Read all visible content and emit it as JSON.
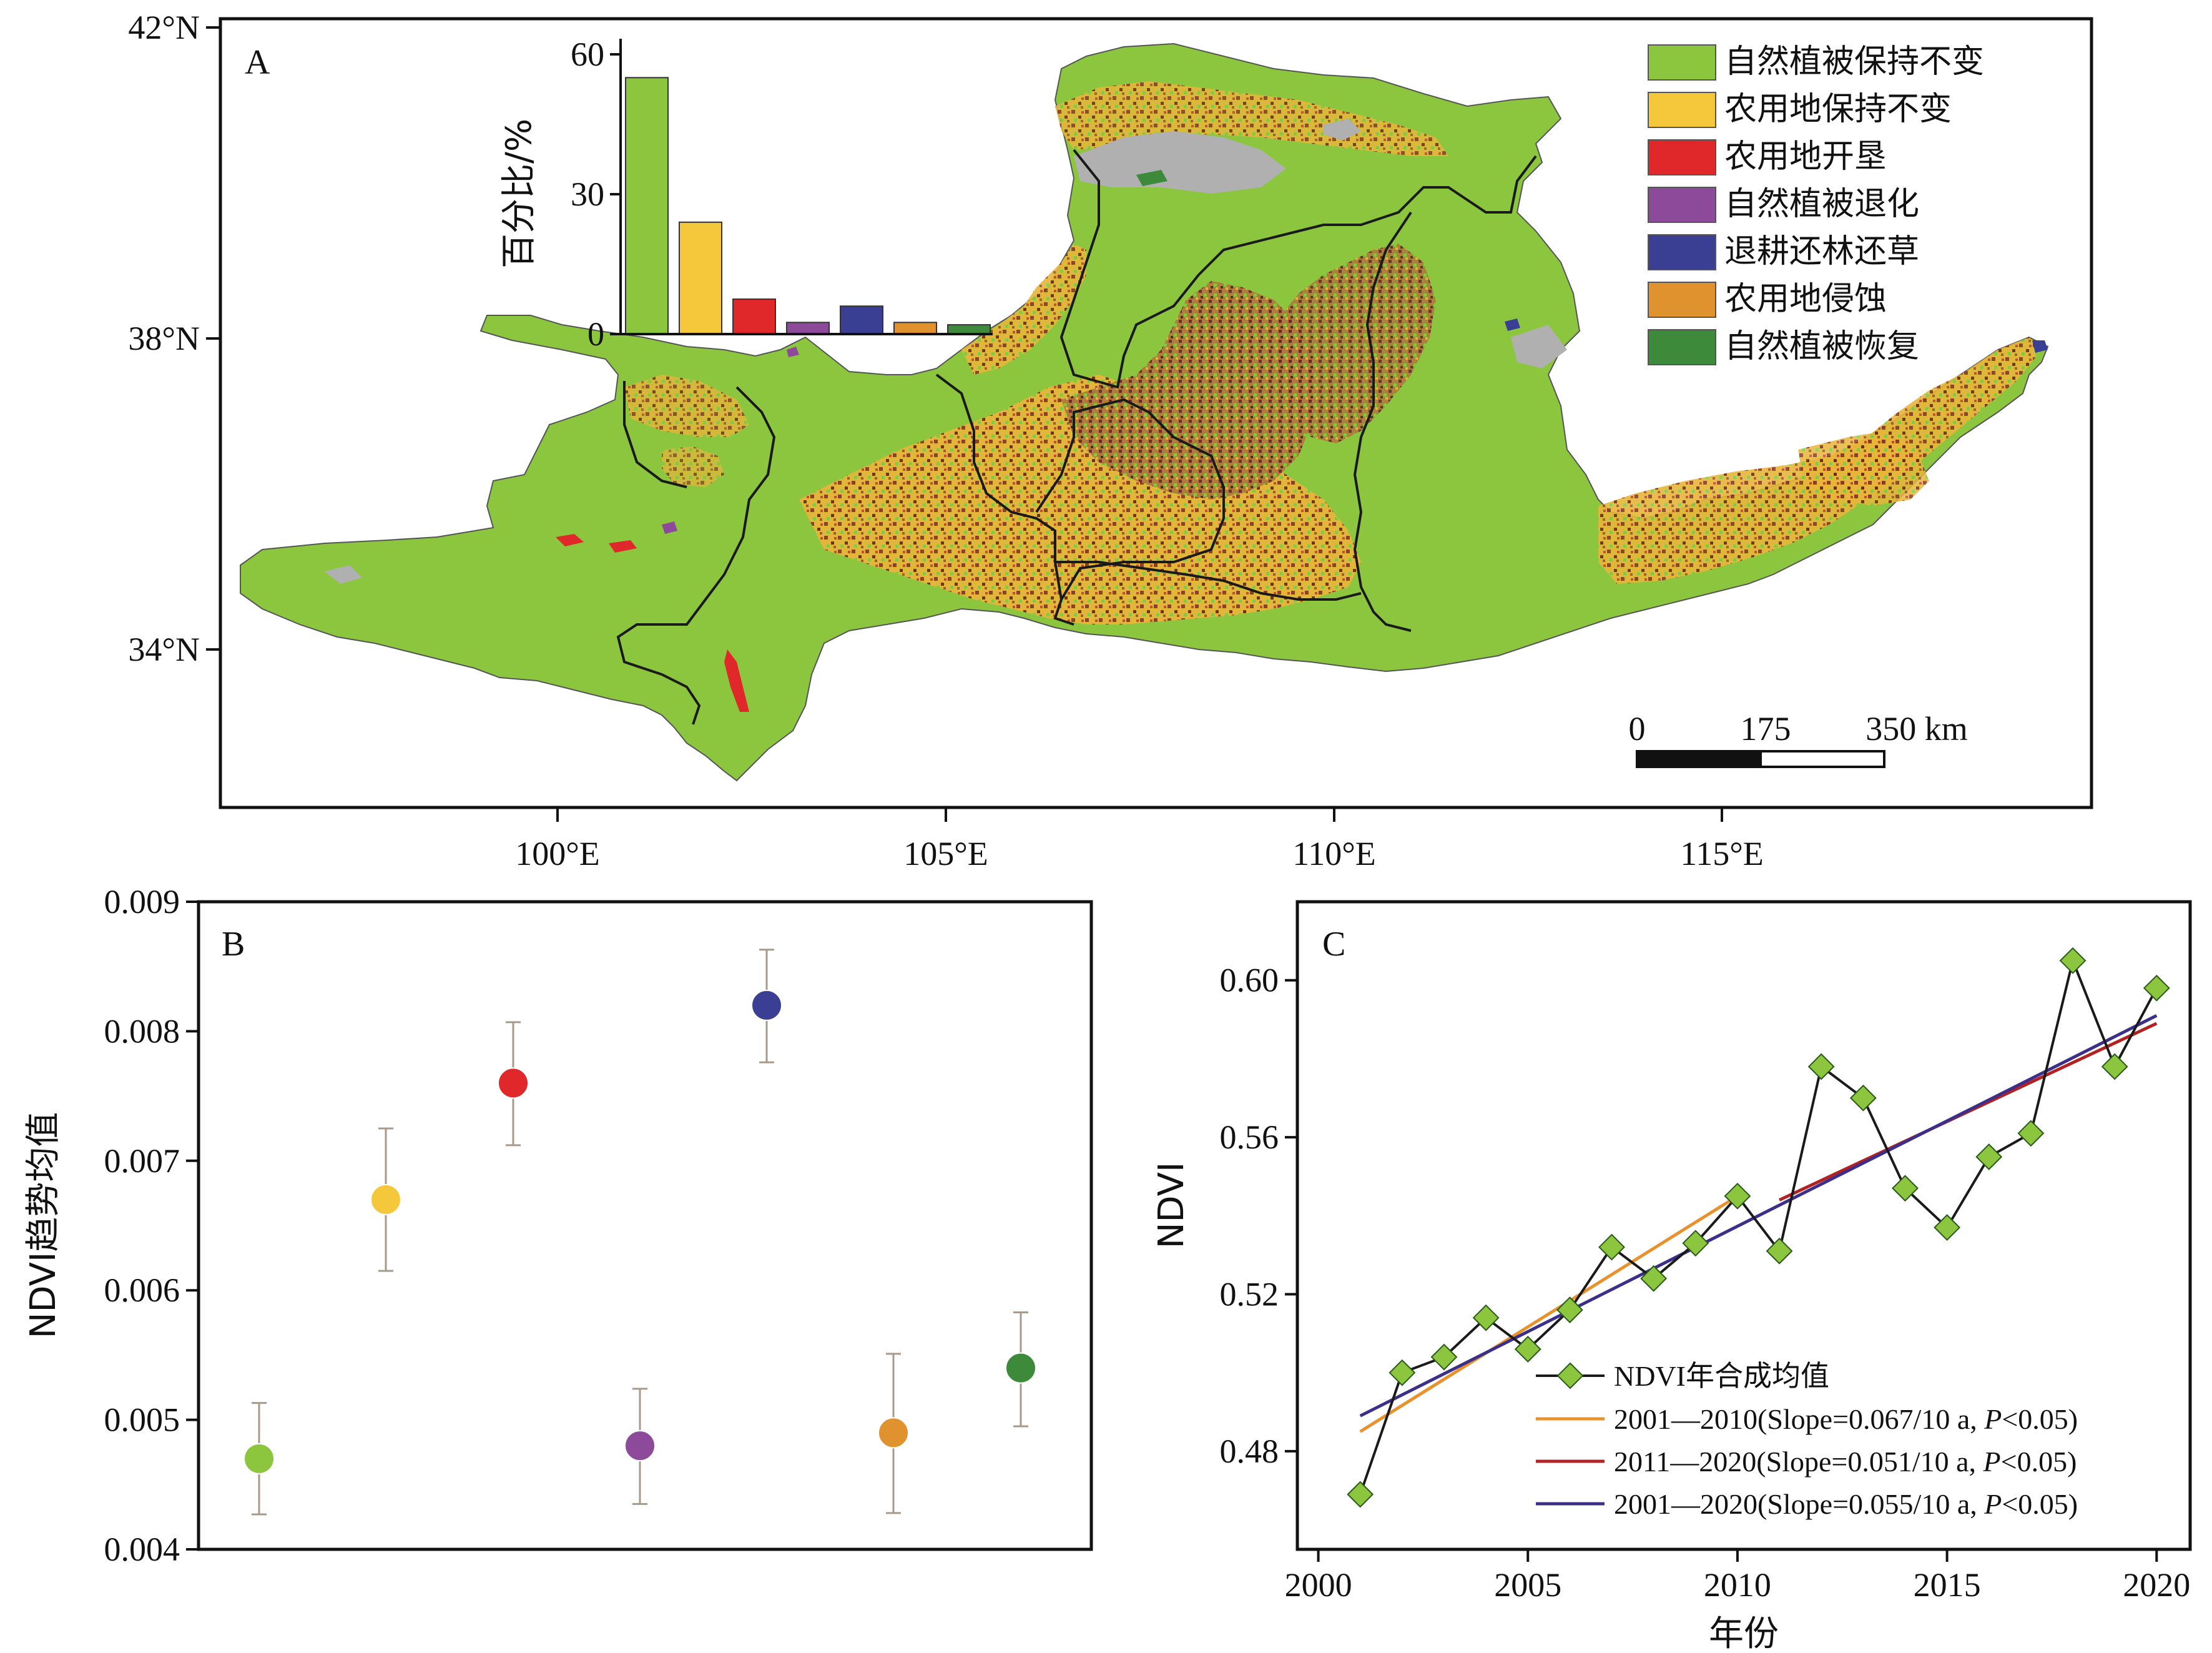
{
  "panel_labels": {
    "a": "A",
    "b": "B",
    "c": "C"
  },
  "colors": {
    "nat_const": "#8cc63f",
    "farm_const": "#f5c83c",
    "reclaim": "#e0282a",
    "degrade": "#8e4a9a",
    "g4g": "#3b3f94",
    "erosion": "#e0922e",
    "restore": "#3d8a3a",
    "gray": "#b0b0b0",
    "boundary": "#1a1a1a"
  },
  "map": {
    "lat_ticks": [
      "42°N",
      "38°N",
      "34°N"
    ],
    "lon_ticks": [
      "100°E",
      "105°E",
      "110°E",
      "115°E"
    ],
    "legend": [
      {
        "label": "自然植被保持不变",
        "color": "#8cc63f"
      },
      {
        "label": "农用地保持不变",
        "color": "#f5c83c"
      },
      {
        "label": "农用地开垦",
        "color": "#e0282a"
      },
      {
        "label": "自然植被退化",
        "color": "#8e4a9a"
      },
      {
        "label": "退耕还林还草",
        "color": "#3b3f94"
      },
      {
        "label": "农用地侵蚀",
        "color": "#e0922e"
      },
      {
        "label": "自然植被恢复",
        "color": "#3d8a3a"
      }
    ],
    "scalebar": {
      "labels": [
        "0",
        "175",
        "350 km"
      ]
    }
  },
  "chart_data": [
    {
      "type": "bar",
      "panel": "A-inset",
      "ylabel": "百分比/%",
      "ylim": [
        0,
        60
      ],
      "yticks": [
        0,
        30,
        60
      ],
      "categories": [
        "自然植被保持不变",
        "农用地保持不变",
        "农用地开垦",
        "自然植被退化",
        "退耕还林还草",
        "农用地侵蚀",
        "自然植被恢复"
      ],
      "values": [
        55,
        24,
        7.5,
        2.5,
        6,
        2.5,
        2
      ],
      "colors": [
        "#8cc63f",
        "#f5c83c",
        "#e0282a",
        "#8e4a9a",
        "#3b3f94",
        "#e0922e",
        "#3d8a3a"
      ]
    },
    {
      "type": "scatter",
      "panel": "B",
      "ylabel": "NDVI趋势均值",
      "ylim": [
        0.004,
        0.009
      ],
      "yticks": [
        "0.004",
        "0.005",
        "0.006",
        "0.007",
        "0.008",
        "0.009"
      ],
      "categories": [
        "自然植被保持不变",
        "农用地保持不变",
        "农用地开垦",
        "自然植被退化",
        "退耕还林还草",
        "农用地侵蚀",
        "自然植被恢复"
      ],
      "values": [
        0.0047,
        0.0067,
        0.0076,
        0.0048,
        0.0082,
        0.0049,
        0.0054
      ],
      "err_low": [
        0.00427,
        0.00615,
        0.00712,
        0.00435,
        0.00776,
        0.00428,
        0.00495
      ],
      "err_high": [
        0.00513,
        0.00725,
        0.00807,
        0.00524,
        0.00863,
        0.00551,
        0.00583
      ],
      "colors": [
        "#8cc63f",
        "#f5c83c",
        "#e0282a",
        "#8e4a9a",
        "#3b3f94",
        "#e0922e",
        "#3d8a3a"
      ]
    },
    {
      "type": "line",
      "panel": "C",
      "xlabel": "年份",
      "ylabel": "NDVI",
      "xlim": [
        1999.5,
        2020.8
      ],
      "ylim": [
        0.455,
        0.62
      ],
      "xticks": [
        2000,
        2005,
        2010,
        2015,
        2020
      ],
      "yticks": [
        "0.48",
        "0.52",
        "0.56",
        "0.60"
      ],
      "series": [
        {
          "name": "NDVI年合成均值",
          "color": "#1a1a1a",
          "marker_color": "#8cc63f",
          "x": [
            2001,
            2002,
            2003,
            2004,
            2005,
            2006,
            2007,
            2008,
            2009,
            2010,
            2011,
            2012,
            2013,
            2014,
            2015,
            2016,
            2017,
            2018,
            2019,
            2020
          ],
          "y": [
            0.469,
            0.5,
            0.504,
            0.514,
            0.506,
            0.516,
            0.532,
            0.524,
            0.533,
            0.545,
            0.531,
            0.578,
            0.57,
            0.547,
            0.537,
            0.555,
            0.561,
            0.605,
            0.578,
            0.598
          ]
        },
        {
          "name": "2001—2010(Slope=0.067/10 a, P<0.05)",
          "color": "#e8922e",
          "x": [
            2001,
            2010
          ],
          "y": [
            0.485,
            0.545
          ]
        },
        {
          "name": "2011—2020(Slope=0.051/10 a, P<0.05)",
          "color": "#b22222",
          "x": [
            2011,
            2020
          ],
          "y": [
            0.544,
            0.589
          ]
        },
        {
          "name": "2001—2020(Slope=0.055/10 a, P<0.05)",
          "color": "#3b2f8a",
          "x": [
            2001,
            2020
          ],
          "y": [
            0.489,
            0.591
          ]
        }
      ],
      "legend_lines": [
        {
          "pre": "2001—2010(Slope=0.067/10 a, ",
          "italic": "P",
          "post": "<0.05)"
        },
        {
          "pre": "2011—2020(Slope=0.051/10 a, ",
          "italic": "P",
          "post": "<0.05)"
        },
        {
          "pre": "2001—2020(Slope=0.055/10 a, ",
          "italic": "P",
          "post": "<0.05)"
        }
      ]
    }
  ]
}
